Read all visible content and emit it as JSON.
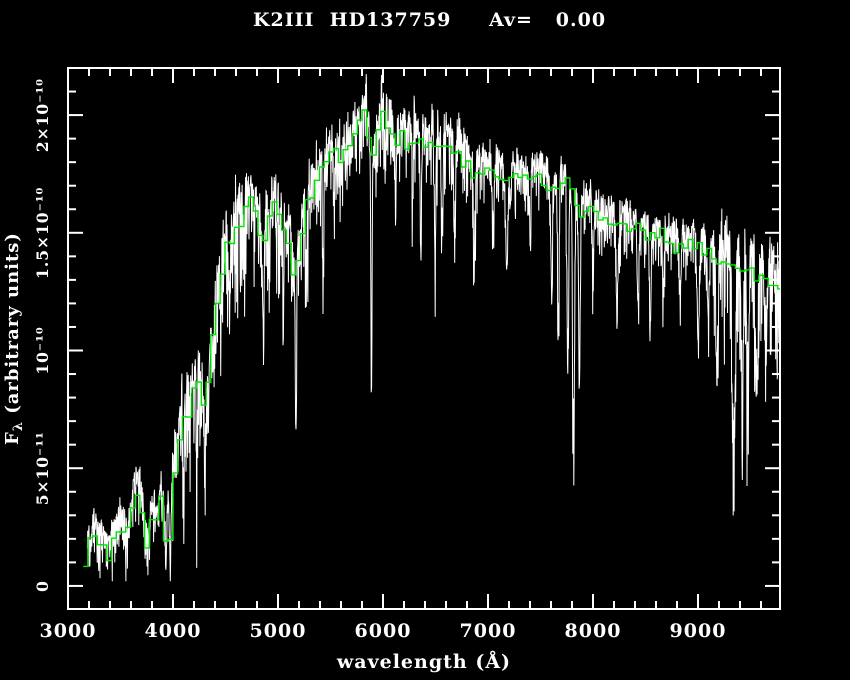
{
  "header": {
    "star_label": "K2III  HD137759",
    "extinction_label": "Av=   0.00"
  },
  "chart_data": {
    "type": "line",
    "title": "K2III HD137759 Av= 0.00",
    "xlabel": "wavelength (Å)",
    "ylabel": {
      "main": "F",
      "sub": "λ",
      "rest": " (arbitrary units)"
    },
    "background": "#000000",
    "axis_color": "#ffffff",
    "grid": false,
    "legend": "none",
    "x_axis": {
      "min": 3000,
      "max": 9781,
      "label_values": [
        3000,
        4000,
        5000,
        6000,
        7000,
        8000,
        9000
      ],
      "labels": [
        "3000",
        "4000",
        "5000",
        "6000",
        "7000",
        "8000",
        "9000"
      ],
      "minor_step": 200
    },
    "y_axis": {
      "min": -0.098,
      "max": 2.2,
      "unit_scale": "1e-10",
      "label_values": [
        0,
        0.5,
        1.0,
        1.5,
        2.0
      ],
      "labels": [
        "0",
        "5×10⁻¹¹",
        "10⁻¹⁰",
        "1.5×10⁻¹⁰",
        "2×10⁻¹⁰"
      ],
      "minor_step": 0.1
    },
    "envelope_points": [
      [
        3145,
        0.1
      ],
      [
        3200,
        0.16
      ],
      [
        3250,
        0.22
      ],
      [
        3300,
        0.19
      ],
      [
        3350,
        0.16
      ],
      [
        3400,
        0.13
      ],
      [
        3450,
        0.21
      ],
      [
        3500,
        0.27
      ],
      [
        3550,
        0.21
      ],
      [
        3600,
        0.27
      ],
      [
        3650,
        0.43
      ],
      [
        3700,
        0.37
      ],
      [
        3750,
        0.14
      ],
      [
        3800,
        0.29
      ],
      [
        3850,
        0.27
      ],
      [
        3900,
        0.38
      ],
      [
        3935,
        0.15
      ],
      [
        3955,
        0.34
      ],
      [
        3975,
        0.18
      ],
      [
        4000,
        0.42
      ],
      [
        4050,
        0.6
      ],
      [
        4100,
        0.73
      ],
      [
        4150,
        0.71
      ],
      [
        4200,
        0.82
      ],
      [
        4250,
        0.85
      ],
      [
        4300,
        0.77
      ],
      [
        4350,
        0.94
      ],
      [
        4400,
        1.12
      ],
      [
        4450,
        1.28
      ],
      [
        4500,
        1.44
      ],
      [
        4550,
        1.42
      ],
      [
        4600,
        1.49
      ],
      [
        4650,
        1.54
      ],
      [
        4700,
        1.59
      ],
      [
        4750,
        1.62
      ],
      [
        4800,
        1.55
      ],
      [
        4850,
        1.42
      ],
      [
        4900,
        1.52
      ],
      [
        4950,
        1.65
      ],
      [
        5000,
        1.56
      ],
      [
        5050,
        1.5
      ],
      [
        5100,
        1.46
      ],
      [
        5150,
        1.3
      ],
      [
        5200,
        1.42
      ],
      [
        5250,
        1.58
      ],
      [
        5300,
        1.62
      ],
      [
        5350,
        1.7
      ],
      [
        5400,
        1.73
      ],
      [
        5450,
        1.78
      ],
      [
        5500,
        1.82
      ],
      [
        5550,
        1.84
      ],
      [
        5600,
        1.79
      ],
      [
        5650,
        1.86
      ],
      [
        5700,
        1.9
      ],
      [
        5750,
        1.93
      ],
      [
        5800,
        1.97
      ],
      [
        5850,
        2.02
      ],
      [
        5890,
        1.72
      ],
      [
        5930,
        1.88
      ],
      [
        5980,
        2.0
      ],
      [
        6030,
        1.97
      ],
      [
        6080,
        1.93
      ],
      [
        6130,
        1.89
      ],
      [
        6180,
        1.94
      ],
      [
        6230,
        1.89
      ],
      [
        6280,
        1.92
      ],
      [
        6330,
        1.87
      ],
      [
        6380,
        1.91
      ],
      [
        6430,
        1.86
      ],
      [
        6480,
        1.89
      ],
      [
        6530,
        1.86
      ],
      [
        6560,
        1.82
      ],
      [
        6600,
        1.87
      ],
      [
        6650,
        1.85
      ],
      [
        6700,
        1.84
      ],
      [
        6750,
        1.82
      ],
      [
        6800,
        1.79
      ],
      [
        6870,
        1.71
      ],
      [
        6930,
        1.77
      ],
      [
        7000,
        1.76
      ],
      [
        7070,
        1.74
      ],
      [
        7140,
        1.73
      ],
      [
        7200,
        1.7
      ],
      [
        7270,
        1.74
      ],
      [
        7340,
        1.72
      ],
      [
        7410,
        1.74
      ],
      [
        7480,
        1.73
      ],
      [
        7550,
        1.71
      ],
      [
        7620,
        1.66
      ],
      [
        7690,
        1.73
      ],
      [
        7760,
        1.7
      ],
      [
        7830,
        1.62
      ],
      [
        7900,
        1.57
      ],
      [
        7970,
        1.6
      ],
      [
        8040,
        1.57
      ],
      [
        8110,
        1.55
      ],
      [
        8180,
        1.54
      ],
      [
        8250,
        1.52
      ],
      [
        8320,
        1.54
      ],
      [
        8390,
        1.52
      ],
      [
        8450,
        1.5
      ],
      [
        8520,
        1.48
      ],
      [
        8590,
        1.47
      ],
      [
        8660,
        1.48
      ],
      [
        8730,
        1.46
      ],
      [
        8800,
        1.45
      ],
      [
        8870,
        1.44
      ],
      [
        8940,
        1.45
      ],
      [
        9010,
        1.46
      ],
      [
        9080,
        1.42
      ],
      [
        9150,
        1.4
      ],
      [
        9220,
        1.38
      ],
      [
        9290,
        1.37
      ],
      [
        9360,
        1.36
      ],
      [
        9430,
        1.34
      ],
      [
        9500,
        1.33
      ],
      [
        9570,
        1.32
      ],
      [
        9640,
        1.31
      ],
      [
        9710,
        1.29
      ],
      [
        9781,
        1.26
      ]
    ],
    "series": [
      {
        "name": "observed_spectrum",
        "color": "#ffffff",
        "style": "noisy-line",
        "start": 3185,
        "end": 9781,
        "sample_step": 3,
        "envelope_offset": 0.05,
        "noise_seed": 20240613,
        "noise_regions": [
          [
            3185,
            3990,
            0.09
          ],
          [
            3990,
            4700,
            0.2
          ],
          [
            4700,
            5450,
            0.16
          ],
          [
            5450,
            6900,
            0.12
          ],
          [
            6900,
            9150,
            0.09
          ],
          [
            9150,
            9781,
            0.2
          ]
        ],
        "absorption_lines": [
          [
            3933,
            0.1,
            8
          ],
          [
            3968,
            0.09,
            8
          ],
          [
            4101,
            0.22,
            7
          ],
          [
            4227,
            0.28,
            6
          ],
          [
            4305,
            0.32,
            9
          ],
          [
            4340,
            0.22,
            7
          ],
          [
            4383,
            0.28,
            6
          ],
          [
            4455,
            0.3,
            6
          ],
          [
            4530,
            0.25,
            6
          ],
          [
            4668,
            0.28,
            6
          ],
          [
            4861,
            0.35,
            7
          ],
          [
            4920,
            0.25,
            6
          ],
          [
            5050,
            0.25,
            6
          ],
          [
            5169,
            0.6,
            8
          ],
          [
            5270,
            0.35,
            7
          ],
          [
            5430,
            0.3,
            6
          ],
          [
            5535,
            0.3,
            6
          ],
          [
            5890,
            0.8,
            6
          ],
          [
            6020,
            0.25,
            6
          ],
          [
            6122,
            0.3,
            6
          ],
          [
            6280,
            0.28,
            6
          ],
          [
            6360,
            0.5,
            6
          ],
          [
            6495,
            0.55,
            7
          ],
          [
            6563,
            0.35,
            7
          ],
          [
            6680,
            0.45,
            7
          ],
          [
            6870,
            0.4,
            9
          ],
          [
            7050,
            0.3,
            8
          ],
          [
            7180,
            0.35,
            10
          ],
          [
            7400,
            0.3,
            8
          ],
          [
            7605,
            0.38,
            9
          ],
          [
            7670,
            0.66,
            8
          ],
          [
            7760,
            0.9,
            8
          ],
          [
            7815,
            1.2,
            9
          ],
          [
            7870,
            0.72,
            8
          ],
          [
            8000,
            0.3,
            8
          ],
          [
            8230,
            0.42,
            10
          ],
          [
            8430,
            0.32,
            9
          ],
          [
            8545,
            0.38,
            8
          ],
          [
            8670,
            0.32,
            8
          ],
          [
            8830,
            0.28,
            9
          ],
          [
            9000,
            0.42,
            13
          ],
          [
            9100,
            0.35,
            10
          ],
          [
            9180,
            0.45,
            11
          ],
          [
            9340,
            0.82,
            13
          ],
          [
            9420,
            0.58,
            10
          ],
          [
            9475,
            0.55,
            10
          ],
          [
            9560,
            0.45,
            13
          ],
          [
            9650,
            0.35,
            11
          ]
        ]
      },
      {
        "name": "smoothed_spectrum",
        "color": "#00e600",
        "style": "step-line",
        "start": 3145,
        "end": 9781,
        "bin_width": 45,
        "noise_seed": 7,
        "noise_amp": 0.045
      }
    ]
  }
}
